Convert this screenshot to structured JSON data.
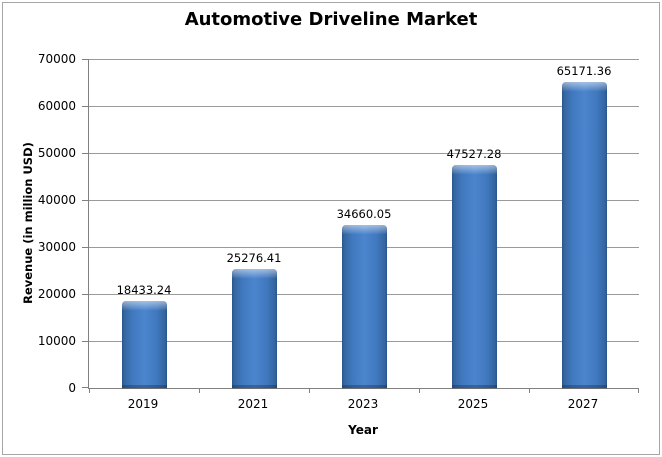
{
  "title": "Automotive Driveline Market",
  "chart_data": {
    "type": "bar",
    "title": "Automotive Driveline Market",
    "xlabel": "Year",
    "ylabel": "Revenue (in million USD)",
    "categories": [
      "2019",
      "2021",
      "2023",
      "2025",
      "2027"
    ],
    "values": [
      18433.24,
      25276.41,
      34660.05,
      47527.28,
      65171.36
    ],
    "value_labels": [
      "18433.24",
      "25276.41",
      "34660.05",
      "47527.28",
      "65171.36"
    ],
    "ylim": [
      0,
      70000
    ],
    "yticks": [
      0,
      10000,
      20000,
      30000,
      40000,
      50000,
      60000,
      70000
    ],
    "grid": true,
    "legend": false,
    "colors": {
      "bar_fill": "#4b85cd",
      "bar_edge": "#29548f",
      "bar_highlight": "#9dc0e8",
      "gridline": "#9a9a9a",
      "axis": "#808080",
      "text": "#000000",
      "background": "#ffffff",
      "frame_border": "#a6a6a6"
    }
  }
}
